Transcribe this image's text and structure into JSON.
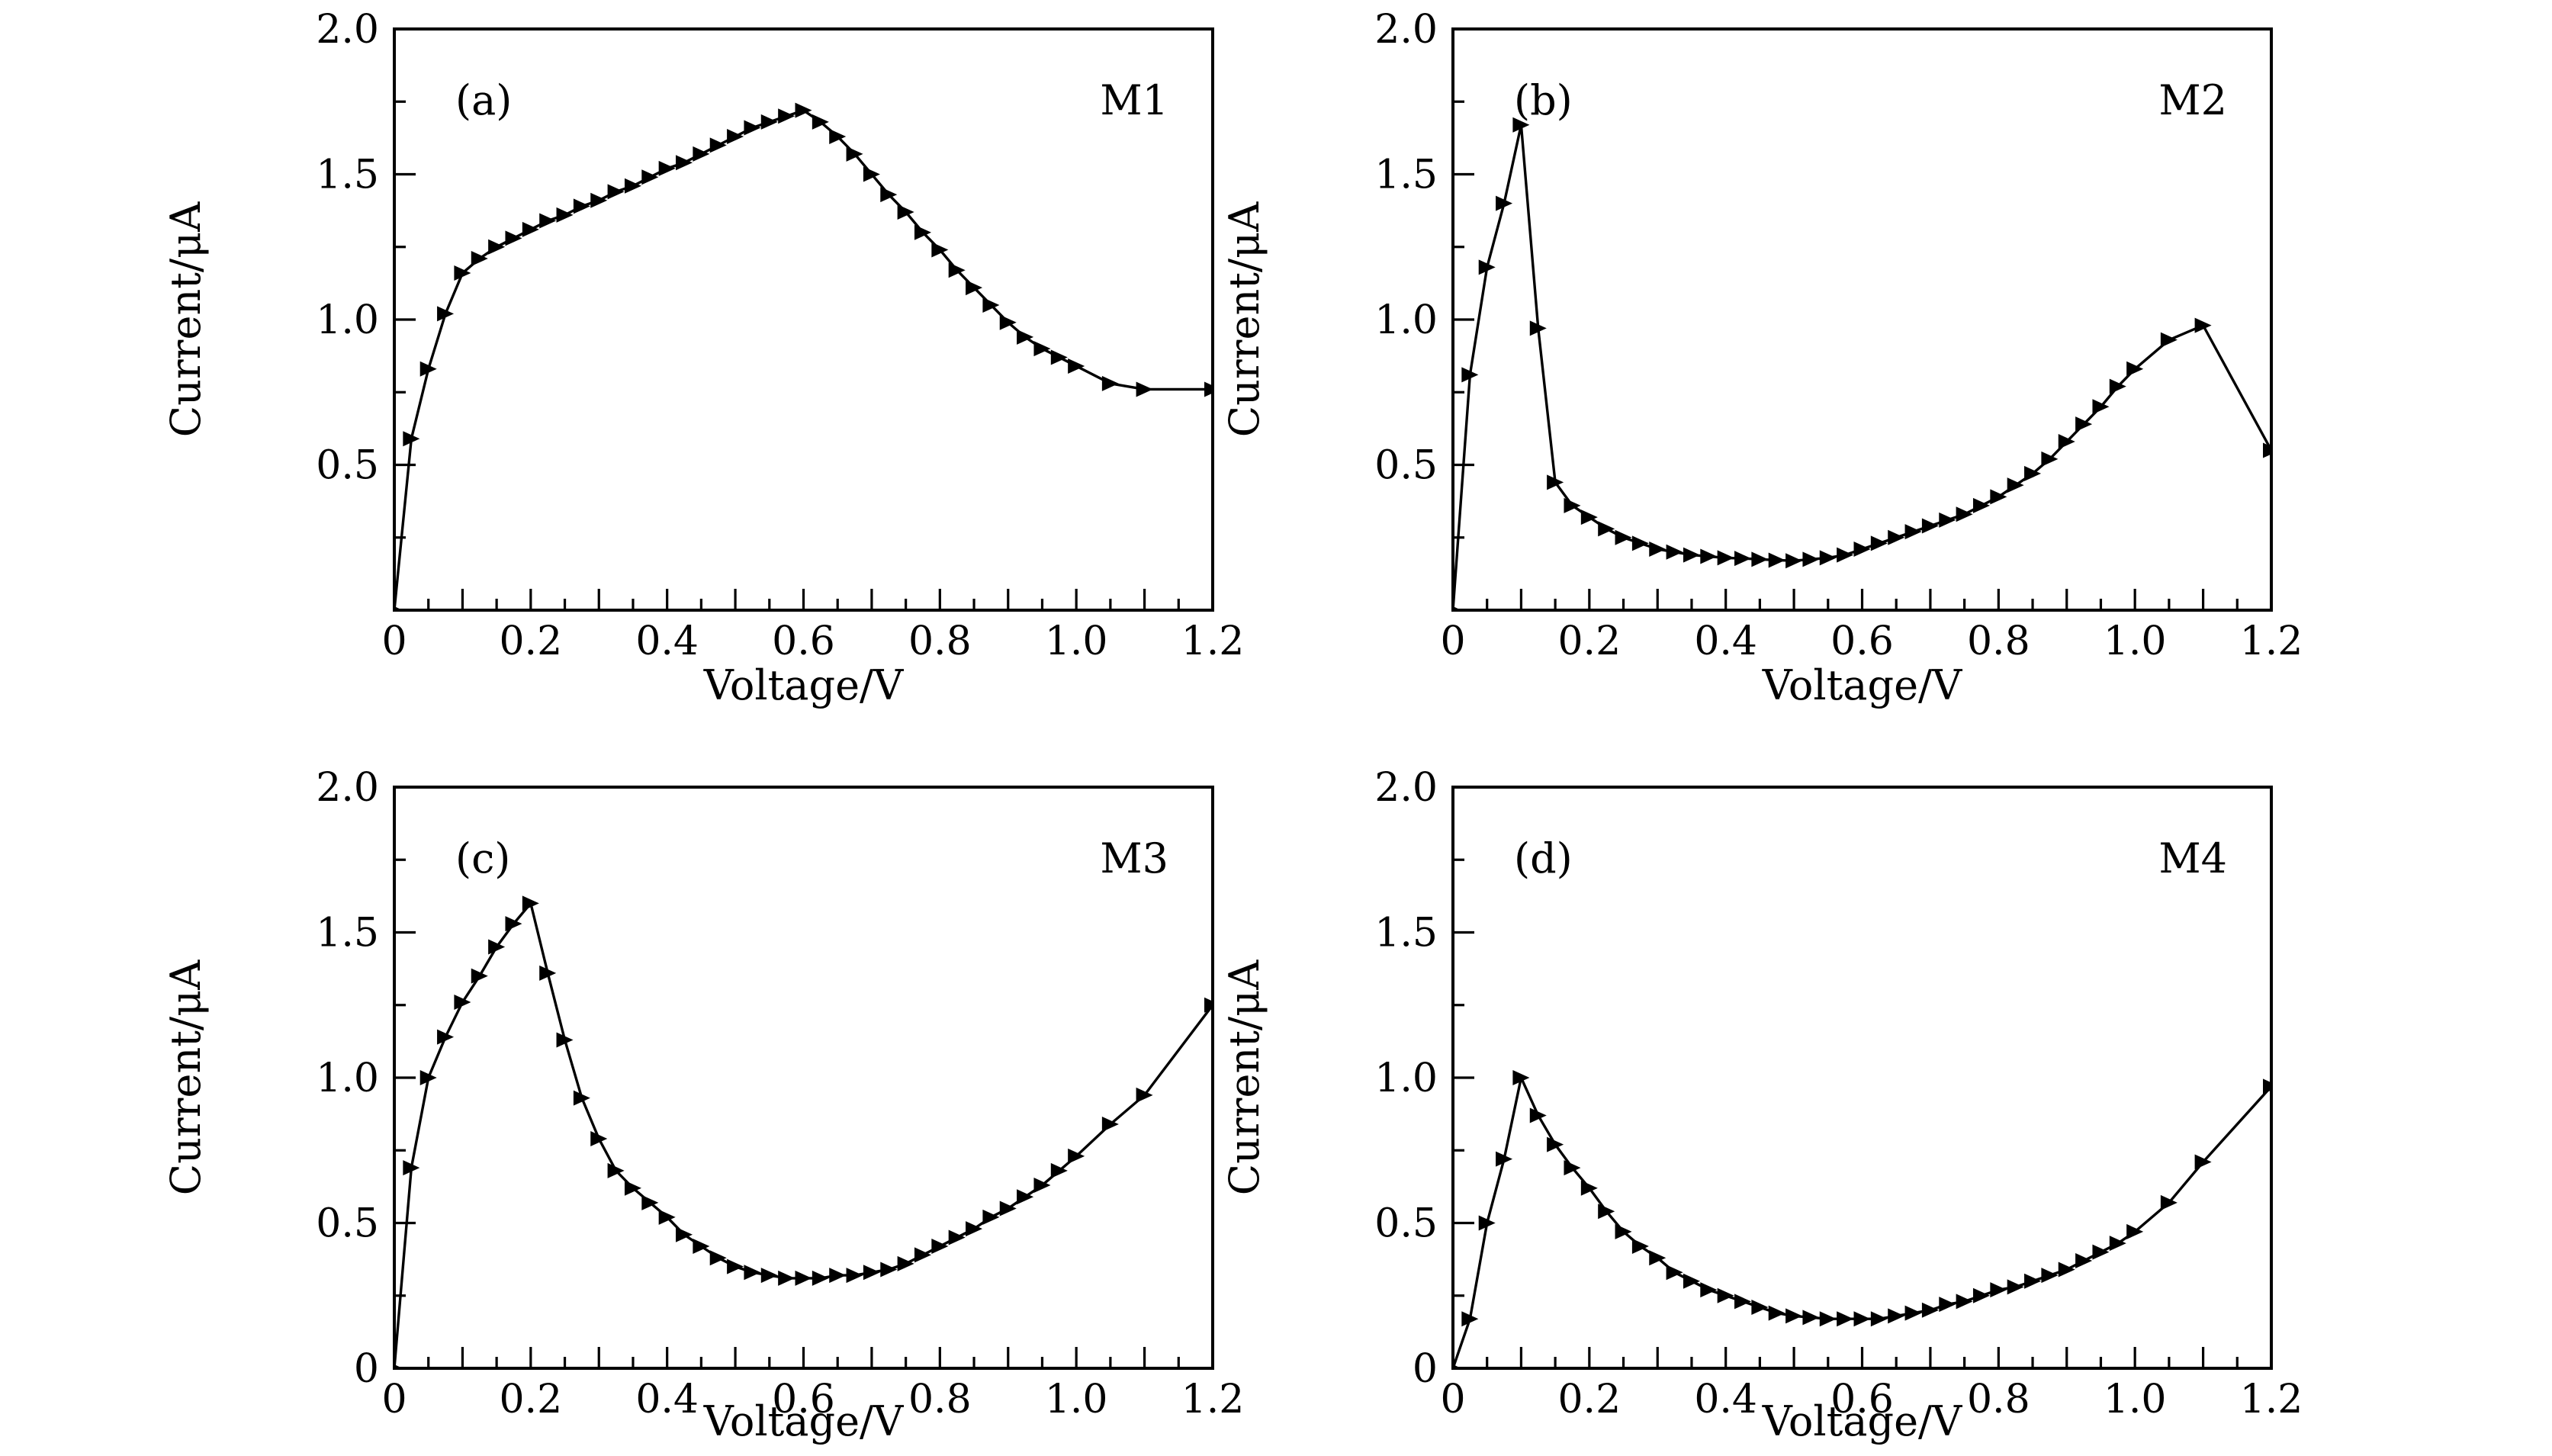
{
  "figure": {
    "background_color": "#ffffff",
    "foreground_color": "#000000",
    "marker_shape": "right-triangle",
    "panel_count": 4
  },
  "chart_data": [
    {
      "type": "line",
      "panel_label": "(a)",
      "series_label": "M1",
      "xlabel": "Voltage/V",
      "ylabel": "Current/μA",
      "xlim": [
        0,
        1.2
      ],
      "ylim": [
        0,
        2.0
      ],
      "grid": "off",
      "legend": "none",
      "x_tick_label_values": [
        0,
        0.2,
        0.4,
        0.6,
        0.8,
        1.0,
        1.2
      ],
      "x_tick_labels": [
        "0",
        "0.2",
        "0.4",
        "0.6",
        "0.8",
        "1.0",
        "1.2"
      ],
      "y_tick_label_values": [
        2.0,
        1.5,
        1.0,
        0.5
      ],
      "y_tick_labels": [
        "2.0",
        "1.5",
        "1.0",
        "0.5"
      ],
      "x_minor_step": 0.05,
      "y_minor_step": 0.25,
      "line_color": "#000000",
      "x": [
        0,
        0.025,
        0.05,
        0.075,
        0.1,
        0.125,
        0.15,
        0.175,
        0.2,
        0.225,
        0.25,
        0.275,
        0.3,
        0.325,
        0.35,
        0.375,
        0.4,
        0.425,
        0.45,
        0.475,
        0.5,
        0.525,
        0.55,
        0.575,
        0.6,
        0.625,
        0.65,
        0.675,
        0.7,
        0.725,
        0.75,
        0.775,
        0.8,
        0.825,
        0.85,
        0.875,
        0.9,
        0.925,
        0.95,
        0.975,
        1.0,
        1.05,
        1.1,
        1.2
      ],
      "y": [
        0,
        0.59,
        0.83,
        1.02,
        1.16,
        1.21,
        1.25,
        1.28,
        1.31,
        1.34,
        1.36,
        1.39,
        1.41,
        1.44,
        1.46,
        1.49,
        1.52,
        1.54,
        1.57,
        1.6,
        1.63,
        1.66,
        1.68,
        1.7,
        1.72,
        1.68,
        1.63,
        1.57,
        1.5,
        1.43,
        1.37,
        1.3,
        1.24,
        1.17,
        1.11,
        1.05,
        0.99,
        0.94,
        0.9,
        0.87,
        0.84,
        0.78,
        0.76,
        0.76
      ]
    },
    {
      "type": "line",
      "panel_label": "(b)",
      "series_label": "M2",
      "xlabel": "Voltage/V",
      "ylabel": "Current/μA",
      "xlim": [
        0,
        1.2
      ],
      "ylim": [
        0,
        2.0
      ],
      "grid": "off",
      "legend": "none",
      "x_tick_label_values": [
        0,
        0.2,
        0.4,
        0.6,
        0.8,
        1.0,
        1.2
      ],
      "x_tick_labels": [
        "0",
        "0.2",
        "0.4",
        "0.6",
        "0.8",
        "1.0",
        "1.2"
      ],
      "y_tick_label_values": [
        2.0,
        1.5,
        1.0,
        0.5
      ],
      "y_tick_labels": [
        "2.0",
        "1.5",
        "1.0",
        "0.5"
      ],
      "x_minor_step": 0.05,
      "y_minor_step": 0.25,
      "line_color": "#000000",
      "x": [
        0,
        0.025,
        0.05,
        0.075,
        0.1,
        0.125,
        0.15,
        0.175,
        0.2,
        0.225,
        0.25,
        0.275,
        0.3,
        0.325,
        0.35,
        0.375,
        0.4,
        0.425,
        0.45,
        0.475,
        0.5,
        0.525,
        0.55,
        0.575,
        0.6,
        0.625,
        0.65,
        0.675,
        0.7,
        0.725,
        0.75,
        0.775,
        0.8,
        0.825,
        0.85,
        0.875,
        0.9,
        0.925,
        0.95,
        0.975,
        1.0,
        1.05,
        1.1,
        1.2
      ],
      "y": [
        0,
        0.81,
        1.18,
        1.4,
        1.67,
        0.97,
        0.44,
        0.36,
        0.32,
        0.28,
        0.25,
        0.23,
        0.21,
        0.2,
        0.19,
        0.185,
        0.18,
        0.178,
        0.175,
        0.172,
        0.17,
        0.175,
        0.18,
        0.19,
        0.21,
        0.23,
        0.25,
        0.27,
        0.29,
        0.31,
        0.33,
        0.36,
        0.39,
        0.43,
        0.47,
        0.52,
        0.58,
        0.64,
        0.7,
        0.77,
        0.83,
        0.93,
        0.98,
        0.55
      ]
    },
    {
      "type": "line",
      "panel_label": "(c)",
      "series_label": "M3",
      "xlabel": "Voltage/V",
      "ylabel": "Current/μA",
      "xlim": [
        0,
        1.2
      ],
      "ylim": [
        0,
        2.0
      ],
      "grid": "off",
      "legend": "none",
      "x_tick_label_values": [
        0,
        0.2,
        0.4,
        0.6,
        0.8,
        1.0,
        1.2
      ],
      "x_tick_labels": [
        "0",
        "0.2",
        "0.4",
        "0.6",
        "0.8",
        "1.0",
        "1.2"
      ],
      "y_tick_label_values": [
        2.0,
        1.5,
        1.0,
        0.5,
        0
      ],
      "y_tick_labels": [
        "2.0",
        "1.5",
        "1.0",
        "0.5",
        "0"
      ],
      "x_minor_step": 0.05,
      "y_minor_step": 0.25,
      "line_color": "#000000",
      "x": [
        0,
        0.025,
        0.05,
        0.075,
        0.1,
        0.125,
        0.15,
        0.175,
        0.2,
        0.225,
        0.25,
        0.275,
        0.3,
        0.325,
        0.35,
        0.375,
        0.4,
        0.425,
        0.45,
        0.475,
        0.5,
        0.525,
        0.55,
        0.575,
        0.6,
        0.625,
        0.65,
        0.675,
        0.7,
        0.725,
        0.75,
        0.775,
        0.8,
        0.825,
        0.85,
        0.875,
        0.9,
        0.925,
        0.95,
        0.975,
        1.0,
        1.05,
        1.1,
        1.2
      ],
      "y": [
        0,
        0.69,
        1.0,
        1.14,
        1.26,
        1.35,
        1.45,
        1.53,
        1.6,
        1.36,
        1.13,
        0.93,
        0.79,
        0.68,
        0.62,
        0.57,
        0.52,
        0.46,
        0.42,
        0.38,
        0.35,
        0.33,
        0.32,
        0.31,
        0.31,
        0.31,
        0.32,
        0.32,
        0.33,
        0.34,
        0.36,
        0.39,
        0.42,
        0.45,
        0.48,
        0.52,
        0.55,
        0.59,
        0.63,
        0.68,
        0.73,
        0.84,
        0.94,
        1.25
      ]
    },
    {
      "type": "line",
      "panel_label": "(d)",
      "series_label": "M4",
      "xlabel": "Voltage/V",
      "ylabel": "Current/μA",
      "xlim": [
        0,
        1.2
      ],
      "ylim": [
        0,
        2.0
      ],
      "grid": "off",
      "legend": "none",
      "x_tick_label_values": [
        0,
        0.2,
        0.4,
        0.6,
        0.8,
        1.0,
        1.2
      ],
      "x_tick_labels": [
        "0",
        "0.2",
        "0.4",
        "0.6",
        "0.8",
        "1.0",
        "1.2"
      ],
      "y_tick_label_values": [
        2.0,
        1.5,
        1.0,
        0.5,
        0
      ],
      "y_tick_labels": [
        "2.0",
        "1.5",
        "1.0",
        "0.5",
        "0"
      ],
      "x_minor_step": 0.05,
      "y_minor_step": 0.25,
      "line_color": "#000000",
      "x": [
        0,
        0.025,
        0.05,
        0.075,
        0.1,
        0.125,
        0.15,
        0.175,
        0.2,
        0.225,
        0.25,
        0.275,
        0.3,
        0.325,
        0.35,
        0.375,
        0.4,
        0.425,
        0.45,
        0.475,
        0.5,
        0.525,
        0.55,
        0.575,
        0.6,
        0.625,
        0.65,
        0.675,
        0.7,
        0.725,
        0.75,
        0.775,
        0.8,
        0.825,
        0.85,
        0.875,
        0.9,
        0.925,
        0.95,
        0.975,
        1.0,
        1.05,
        1.1,
        1.2
      ],
      "y": [
        0,
        0.17,
        0.5,
        0.72,
        1.0,
        0.87,
        0.77,
        0.69,
        0.62,
        0.54,
        0.47,
        0.42,
        0.38,
        0.33,
        0.3,
        0.27,
        0.25,
        0.23,
        0.21,
        0.19,
        0.18,
        0.175,
        0.17,
        0.17,
        0.17,
        0.17,
        0.18,
        0.19,
        0.2,
        0.22,
        0.23,
        0.25,
        0.27,
        0.28,
        0.3,
        0.32,
        0.34,
        0.37,
        0.4,
        0.43,
        0.47,
        0.57,
        0.71,
        0.97
      ]
    }
  ]
}
